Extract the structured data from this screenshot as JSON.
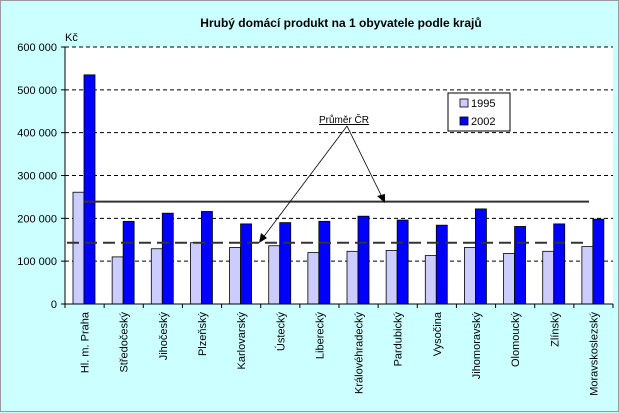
{
  "chart_data": {
    "type": "bar",
    "title": "Hrubý domácí produkt na 1 obyvatele podle krajů",
    "ylabel": "Kč",
    "xlabel": "",
    "ylim": [
      0,
      600000
    ],
    "yticks": [
      0,
      100000,
      200000,
      300000,
      400000,
      500000,
      600000
    ],
    "ytick_labels": [
      "0",
      "100 000",
      "200 000",
      "300 000",
      "400 000",
      "500 000",
      "600 000"
    ],
    "grid": true,
    "legend_position": "top-right",
    "categories": [
      "Hl. m. Praha",
      "Středočeský",
      "Jihočeský",
      "Plzeňský",
      "Karlovarský",
      "Ústecký",
      "Liberecký",
      "Královéhradecký",
      "Pardubický",
      "Vysočina",
      "Jihomoravský",
      "Olomoucký",
      "Zlínský",
      "Moravskoslezský"
    ],
    "series": [
      {
        "name": "1995",
        "color": "#ccccff",
        "values": [
          261000,
          110000,
          129000,
          143000,
          132000,
          136000,
          120000,
          123000,
          125000,
          113000,
          132000,
          118000,
          123000,
          134000
        ]
      },
      {
        "name": "2002",
        "color": "#0000ff",
        "values": [
          535000,
          193000,
          212000,
          216000,
          187000,
          190000,
          193000,
          205000,
          196000,
          184000,
          222000,
          181000,
          187000,
          198000
        ]
      }
    ],
    "reference_lines": [
      {
        "series": "1995",
        "value": 143000,
        "style": "dashed"
      },
      {
        "series": "2002",
        "value": 239000,
        "style": "solid"
      }
    ],
    "annotation": "Průměr ČR"
  }
}
